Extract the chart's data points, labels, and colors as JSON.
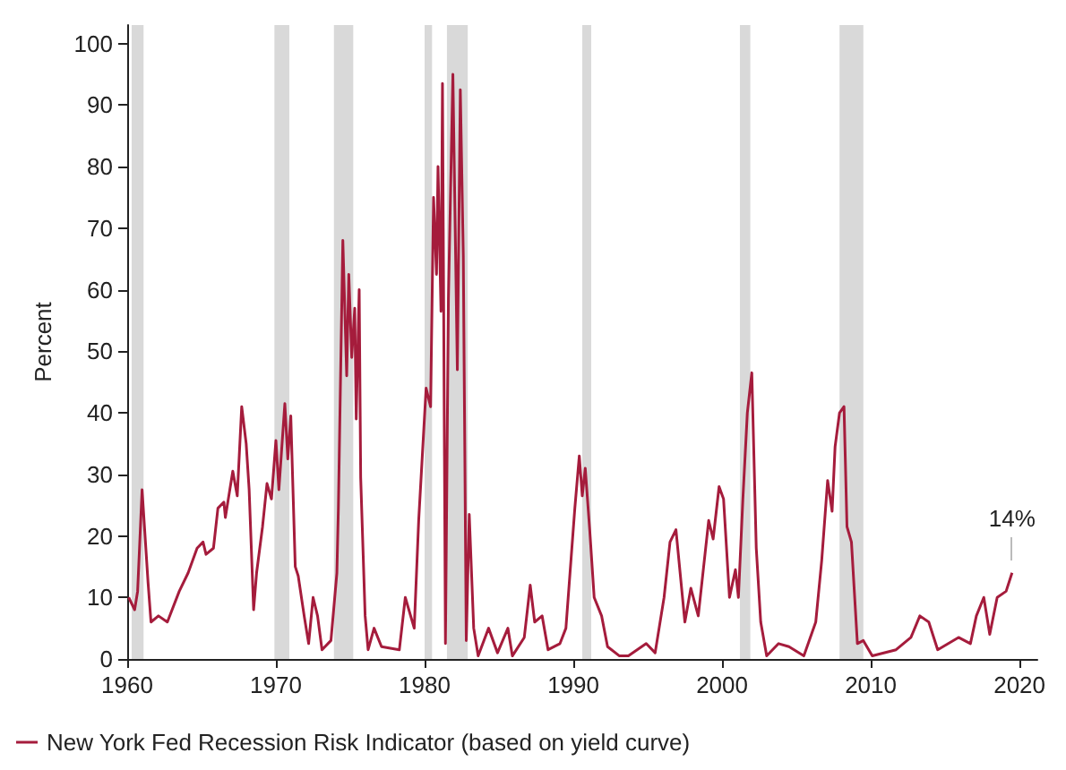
{
  "chart_data": {
    "type": "line",
    "ylabel": "Percent",
    "xlim": [
      1960,
      2021.2
    ],
    "xticks": [
      1960,
      1970,
      1980,
      1990,
      2000,
      2010,
      2020
    ],
    "ylim": [
      0,
      103
    ],
    "yticks": [
      0,
      10,
      20,
      30,
      40,
      50,
      60,
      70,
      80,
      90,
      100
    ],
    "grid": false,
    "legend": "bottom left",
    "annotations": [
      {
        "text": "14%",
        "x": 2019.5,
        "y": 14
      }
    ],
    "bands": [
      {
        "axis": "x",
        "from": 1960.3,
        "to": 1961.1,
        "color": "#d9d9d9"
      },
      {
        "axis": "x",
        "from": 1969.9,
        "to": 1970.9,
        "color": "#d9d9d9"
      },
      {
        "axis": "x",
        "from": 1973.9,
        "to": 1975.2,
        "color": "#d9d9d9"
      },
      {
        "axis": "x",
        "from": 1980.0,
        "to": 1980.5,
        "color": "#d9d9d9"
      },
      {
        "axis": "x",
        "from": 1981.5,
        "to": 1982.9,
        "color": "#d9d9d9"
      },
      {
        "axis": "x",
        "from": 1990.6,
        "to": 1991.2,
        "color": "#d9d9d9"
      },
      {
        "axis": "x",
        "from": 2001.2,
        "to": 2001.9,
        "color": "#d9d9d9"
      },
      {
        "axis": "x",
        "from": 2007.9,
        "to": 2009.5,
        "color": "#d9d9d9"
      }
    ],
    "series": [
      {
        "name": "New York Fed Recession Risk Indicator (based on yield curve)",
        "color": "#a51c3c",
        "x": [
          1960.1,
          1960.5,
          1960.7,
          1961.0,
          1961.4,
          1961.6,
          1962.1,
          1962.7,
          1963.5,
          1964.1,
          1964.7,
          1965.1,
          1965.3,
          1965.8,
          1966.1,
          1966.5,
          1966.6,
          1967.1,
          1967.4,
          1967.7,
          1968.0,
          1968.2,
          1968.5,
          1968.7,
          1969.1,
          1969.4,
          1969.7,
          1970.0,
          1970.2,
          1970.6,
          1970.8,
          1971.0,
          1971.3,
          1971.5,
          1971.9,
          1972.2,
          1972.5,
          1972.8,
          1973.1,
          1973.7,
          1974.1,
          1974.2,
          1974.5,
          1974.76,
          1974.9,
          1975.1,
          1975.3,
          1975.4,
          1975.6,
          1975.7,
          1976.0,
          1976.2,
          1976.6,
          1977.1,
          1978.3,
          1978.7,
          1979.3,
          1979.6,
          1980.1,
          1980.4,
          1980.6,
          1980.8,
          1980.9,
          1981.1,
          1981.2,
          1981.4,
          1981.6,
          1981.9,
          1982.2,
          1982.4,
          1982.6,
          1982.8,
          1983.0,
          1983.3,
          1983.6,
          1984.3,
          1984.9,
          1985.6,
          1985.9,
          1986.7,
          1987.1,
          1987.4,
          1987.9,
          1988.3,
          1989.1,
          1989.5,
          1990.1,
          1990.4,
          1990.6,
          1990.8,
          1991.1,
          1991.4,
          1991.9,
          1992.3,
          1993.1,
          1993.7,
          1994.9,
          1995.5,
          1996.1,
          1996.5,
          1996.9,
          1997.5,
          1997.9,
          1998.4,
          1999.1,
          1999.4,
          1999.8,
          2000.1,
          2000.5,
          2000.9,
          2001.1,
          2001.4,
          2001.7,
          2002.0,
          2002.3,
          2002.6,
          2003.0,
          2003.8,
          2004.5,
          2005.5,
          2006.3,
          2006.7,
          2007.1,
          2007.4,
          2007.6,
          2007.9,
          2008.2,
          2008.4,
          2008.7,
          2009.1,
          2009.5,
          2010.1,
          2011.7,
          2012.7,
          2013.3,
          2013.9,
          2014.5,
          2015.9,
          2016.7,
          2017.1,
          2017.6,
          2018.0,
          2018.5,
          2019.1,
          2019.5
        ],
        "values": [
          10,
          8,
          11,
          27.5,
          12.5,
          6,
          7,
          6,
          11,
          14,
          18,
          19,
          17,
          18,
          24.5,
          25.5,
          23,
          30.5,
          26.5,
          41,
          35,
          27.5,
          8,
          14,
          21.5,
          28.5,
          26,
          35.5,
          27.5,
          41.5,
          32.5,
          39.5,
          15,
          13.5,
          7,
          2.5,
          10,
          7,
          1.5,
          3,
          14,
          24.5,
          68,
          46,
          62.5,
          49,
          57,
          39,
          60,
          29.5,
          7,
          1.5,
          5,
          2,
          1.5,
          10,
          5,
          22.5,
          44,
          41,
          75,
          62.5,
          80,
          56.5,
          93.5,
          2.5,
          58.5,
          95,
          47,
          92.5,
          65.5,
          3,
          23.5,
          5,
          0.5,
          5,
          1,
          5,
          0.5,
          3.5,
          12,
          6,
          7,
          1.5,
          2.5,
          5,
          24.5,
          33,
          26.5,
          31,
          21,
          10,
          7,
          2,
          0.5,
          0.5,
          2.5,
          1,
          10,
          19,
          21,
          6,
          11.5,
          7,
          22.5,
          19.5,
          28,
          26,
          10,
          14.5,
          10,
          26,
          40,
          46.5,
          18,
          6,
          0.5,
          2.5,
          2,
          0.5,
          6,
          16,
          29,
          24,
          34.5,
          40,
          41,
          21.5,
          19,
          2.5,
          3,
          0.5,
          1.5,
          3.5,
          7,
          6,
          1.5,
          3.5,
          2.5,
          7,
          10,
          4,
          10,
          11,
          14
        ]
      }
    ]
  }
}
